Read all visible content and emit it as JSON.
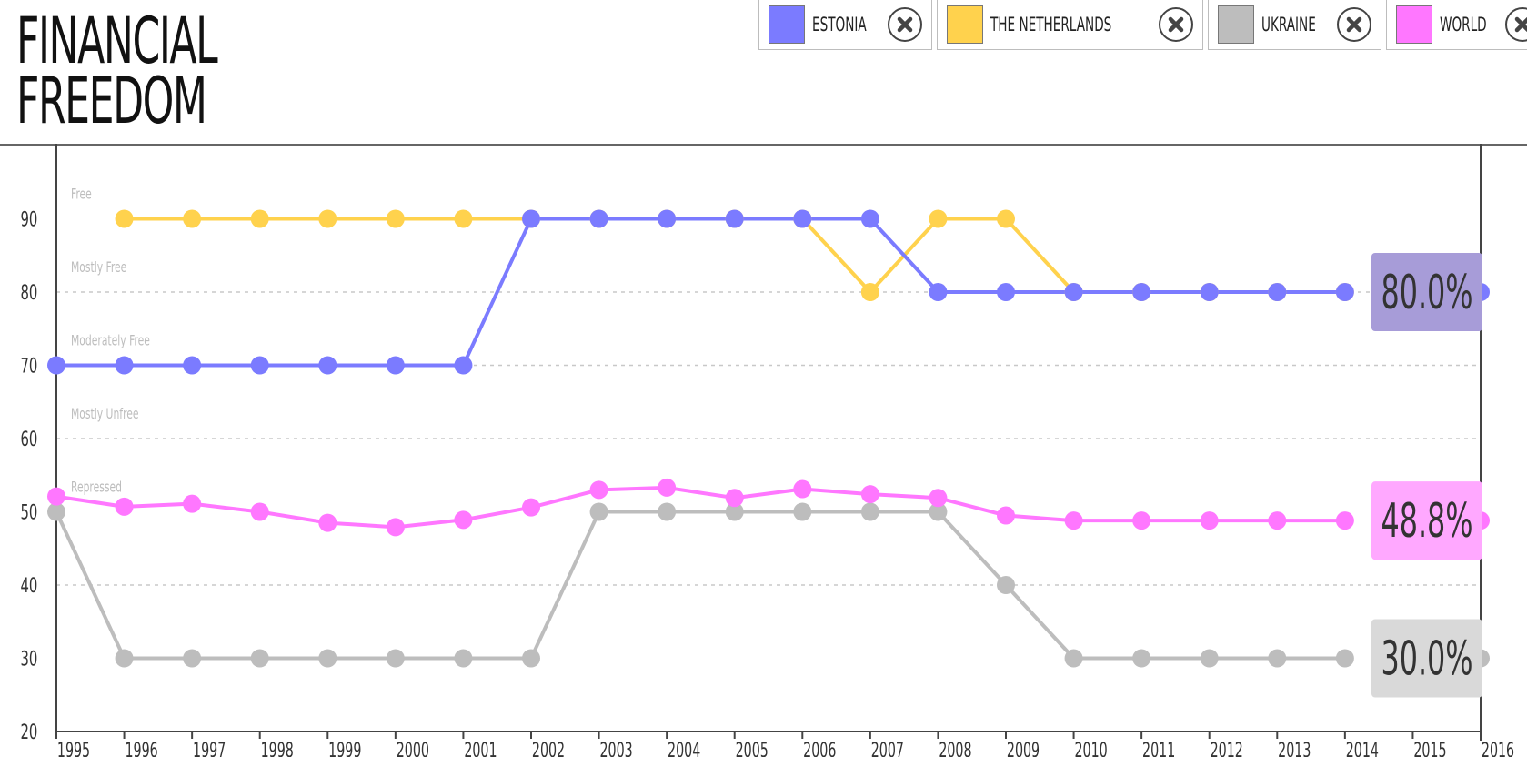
{
  "title": "FINANCIAL\nFREEDOM",
  "legend": [
    {
      "label": "ESTONIA",
      "color": "#7b7bff",
      "close_icon": "close-circle-icon"
    },
    {
      "label": "THE NETHERLANDS",
      "color": "#ffd24d",
      "close_icon": "close-circle-icon"
    },
    {
      "label": "UKRAINE",
      "color": "#bdbdbd",
      "close_icon": "close-circle-icon"
    },
    {
      "label": "WORLD",
      "color": "#ff77ff",
      "close_icon": "close-circle-icon"
    }
  ],
  "chart_data": {
    "type": "line",
    "x": [
      1995,
      1996,
      1997,
      1998,
      1999,
      2000,
      2001,
      2002,
      2003,
      2004,
      2005,
      2006,
      2007,
      2008,
      2009,
      2010,
      2011,
      2012,
      2013,
      2014,
      2015,
      2016
    ],
    "ylim": [
      20,
      100
    ],
    "yticks": [
      20,
      30,
      40,
      50,
      60,
      70,
      80,
      90
    ],
    "grid": "dotted horizontal at 40, 60, 70, 80",
    "bands": [
      {
        "label": "Free",
        "value": 90
      },
      {
        "label": "Mostly Free",
        "value": 80
      },
      {
        "label": "Moderately Free",
        "value": 70
      },
      {
        "label": "Mostly Unfree",
        "value": 60
      },
      {
        "label": "Repressed",
        "value": 50
      }
    ],
    "series": [
      {
        "name": "ESTONIA",
        "color": "#7b7bff",
        "values": [
          70,
          70,
          70,
          70,
          70,
          70,
          70,
          90,
          90,
          90,
          90,
          90,
          90,
          80,
          80,
          80,
          80,
          80,
          80,
          80,
          null,
          80
        ],
        "end_label": "80.0%",
        "end_label_bg": "#a79cd8"
      },
      {
        "name": "THE NETHERLANDS",
        "color": "#ffd24d",
        "values": [
          null,
          90,
          90,
          90,
          90,
          90,
          90,
          90,
          90,
          90,
          90,
          90,
          80,
          90,
          90,
          80,
          80,
          80,
          80,
          80,
          null,
          80
        ],
        "end_label": "",
        "end_label_bg": ""
      },
      {
        "name": "UKRAINE",
        "color": "#bdbdbd",
        "values": [
          50,
          30,
          30,
          30,
          30,
          30,
          30,
          30,
          50,
          50,
          50,
          50,
          50,
          50,
          40,
          30,
          30,
          30,
          30,
          30,
          null,
          30
        ],
        "end_label": "30.0%",
        "end_label_bg": "#d9d9d9"
      },
      {
        "name": "WORLD",
        "color": "#ff77ff",
        "values": [
          52.1,
          50.7,
          51.1,
          50.0,
          48.5,
          47.9,
          48.9,
          50.6,
          53.0,
          53.3,
          51.9,
          53.1,
          52.4,
          51.9,
          49.5,
          48.8,
          48.8,
          48.8,
          48.8,
          48.8,
          null,
          48.8
        ],
        "end_label": "48.8%",
        "end_label_bg": "#ffa8ff"
      }
    ]
  }
}
